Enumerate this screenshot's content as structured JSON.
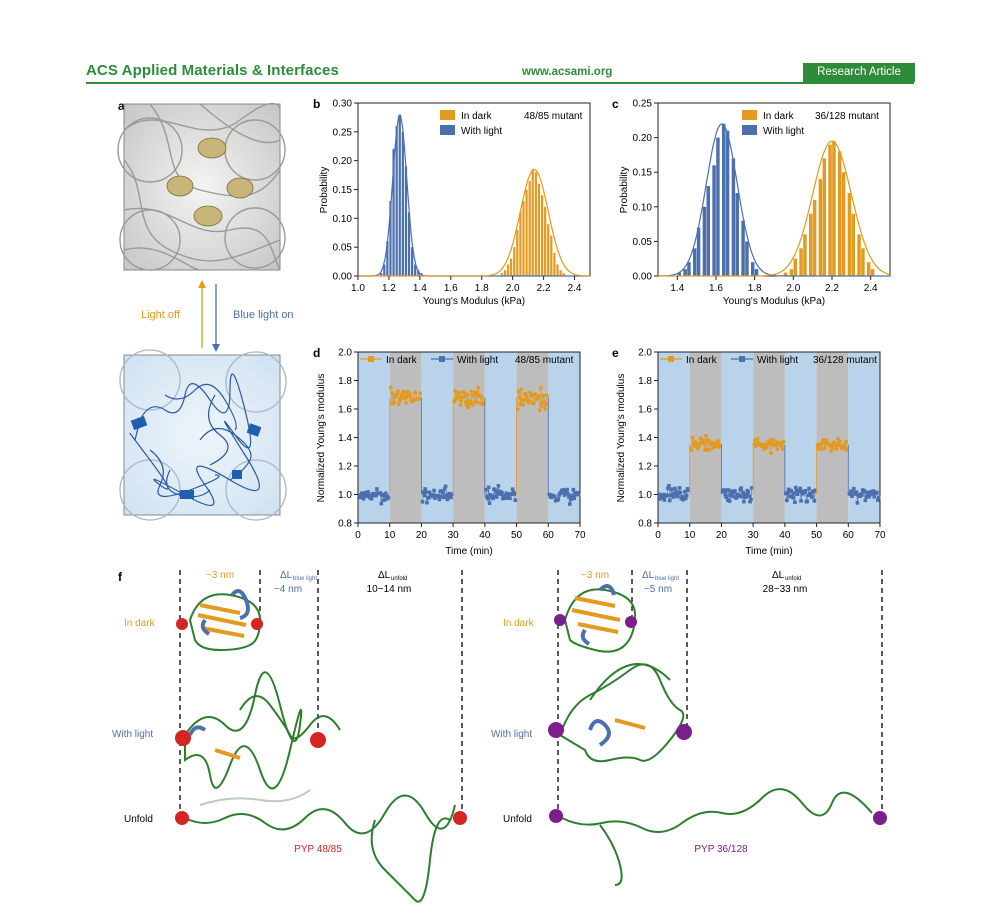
{
  "header": {
    "journal": "ACS Applied Materials & Interfaces",
    "website": "www.acsami.org",
    "badge": "Research Article"
  },
  "panel_letters": {
    "a": "a",
    "b": "b",
    "c": "c",
    "d": "d",
    "e": "e",
    "f": "f"
  },
  "panel_a": {
    "light_off": "Light off",
    "blue_light_on": "Blue light on"
  },
  "colors": {
    "dark": "#e39a1e",
    "light": "#4c6fae",
    "shade_blue": "#b9d4ea",
    "shade_grey": "#bdbdbd",
    "header_green": "#2e8b3a",
    "red_bead": "#d42424",
    "purple_bead": "#7a1f8c",
    "protein_green": "#2f7d2f"
  },
  "chart_data": [
    {
      "id": "b",
      "type": "bar",
      "ylabel": "Probability",
      "xlabel": "Young's Modulus (kPa)",
      "xlim": [
        1.0,
        2.5
      ],
      "ylim": [
        0,
        0.3
      ],
      "xticks": [
        "1.0",
        "1.2",
        "1.4",
        "1.6",
        "1.8",
        "2.0",
        "2.2",
        "2.4"
      ],
      "yticks": [
        "0.00",
        "0.05",
        "0.10",
        "0.15",
        "0.20",
        "0.25",
        "0.30"
      ],
      "legend": {
        "dark": "In dark",
        "light": "With light",
        "note": "48/85 mutant"
      },
      "bin_width": 0.02,
      "series": [
        {
          "name": "With light",
          "color": "#4c6fae",
          "mean": 1.27,
          "sd": 0.045,
          "peak": 0.28,
          "x": [
            1.15,
            1.17,
            1.19,
            1.21,
            1.23,
            1.25,
            1.27,
            1.29,
            1.31,
            1.33,
            1.35,
            1.37,
            1.39,
            1.41
          ],
          "values": [
            0.005,
            0.02,
            0.06,
            0.13,
            0.22,
            0.26,
            0.28,
            0.25,
            0.19,
            0.11,
            0.05,
            0.02,
            0.01,
            0.005
          ]
        },
        {
          "name": "In dark",
          "color": "#e39a1e",
          "mean": 2.14,
          "sd": 0.09,
          "peak": 0.185,
          "x": [
            1.93,
            1.95,
            1.97,
            1.99,
            2.01,
            2.03,
            2.05,
            2.07,
            2.09,
            2.11,
            2.13,
            2.15,
            2.17,
            2.19,
            2.21,
            2.23,
            2.25,
            2.27,
            2.29,
            2.31,
            2.33
          ],
          "values": [
            0.005,
            0.01,
            0.02,
            0.03,
            0.05,
            0.08,
            0.11,
            0.13,
            0.15,
            0.165,
            0.185,
            0.18,
            0.16,
            0.14,
            0.12,
            0.09,
            0.07,
            0.04,
            0.02,
            0.01,
            0.005
          ]
        }
      ]
    },
    {
      "id": "c",
      "type": "bar",
      "ylabel": "Probability",
      "xlabel": "Young's Modulus (kPa)",
      "xlim": [
        1.3,
        2.5
      ],
      "ylim": [
        0,
        0.25
      ],
      "xticks": [
        "1.4",
        "1.6",
        "1.8",
        "2.0",
        "2.2",
        "2.4"
      ],
      "yticks": [
        "0.00",
        "0.05",
        "0.10",
        "0.15",
        "0.20",
        "0.25"
      ],
      "legend": {
        "dark": "In dark",
        "light": "With light",
        "note": "36/128 mutant"
      },
      "bin_width": 0.025,
      "series": [
        {
          "name": "With light",
          "color": "#4c6fae",
          "mean": 1.63,
          "sd": 0.08,
          "peak": 0.22,
          "x": [
            1.41,
            1.44,
            1.46,
            1.49,
            1.51,
            1.54,
            1.56,
            1.59,
            1.61,
            1.64,
            1.66,
            1.69,
            1.71,
            1.74,
            1.76,
            1.79,
            1.81
          ],
          "values": [
            0.005,
            0.01,
            0.02,
            0.04,
            0.07,
            0.1,
            0.13,
            0.16,
            0.2,
            0.22,
            0.21,
            0.17,
            0.12,
            0.08,
            0.05,
            0.02,
            0.01
          ]
        },
        {
          "name": "In dark",
          "color": "#e39a1e",
          "mean": 2.2,
          "sd": 0.1,
          "peak": 0.195,
          "x": [
            1.96,
            1.99,
            2.01,
            2.04,
            2.06,
            2.09,
            2.11,
            2.14,
            2.16,
            2.19,
            2.21,
            2.24,
            2.26,
            2.29,
            2.31,
            2.34,
            2.36,
            2.39,
            2.41
          ],
          "values": [
            0.005,
            0.01,
            0.025,
            0.04,
            0.06,
            0.09,
            0.11,
            0.14,
            0.17,
            0.19,
            0.195,
            0.18,
            0.15,
            0.12,
            0.09,
            0.06,
            0.04,
            0.02,
            0.01
          ]
        }
      ]
    },
    {
      "id": "d",
      "type": "scatter",
      "ylabel": "Normalized Young's modulus",
      "xlabel": "Time (min)",
      "xlim": [
        0,
        70
      ],
      "ylim": [
        0.8,
        2.0
      ],
      "xticks": [
        "0",
        "10",
        "20",
        "30",
        "40",
        "50",
        "60",
        "70"
      ],
      "yticks": [
        "0.8",
        "1.0",
        "1.2",
        "1.4",
        "1.6",
        "1.8",
        "2.0"
      ],
      "legend": {
        "dark": "In dark",
        "light": "With light",
        "note": "48/85 mutant"
      },
      "light_segments": [
        [
          0,
          10
        ],
        [
          20,
          30
        ],
        [
          40,
          50
        ],
        [
          60,
          70
        ]
      ],
      "dark_segments": [
        [
          10,
          20
        ],
        [
          30,
          40
        ],
        [
          50,
          60
        ]
      ],
      "series": [
        {
          "name": "In dark",
          "color": "#e39a1e",
          "level": 1.68,
          "spread": 0.07
        },
        {
          "name": "With light",
          "color": "#4c6fae",
          "level": 1.0,
          "spread": 0.05
        }
      ]
    },
    {
      "id": "e",
      "type": "scatter",
      "ylabel": "Normalized Young's modulus",
      "xlabel": "Time (min)",
      "xlim": [
        0,
        70
      ],
      "ylim": [
        0.8,
        2.0
      ],
      "xticks": [
        "0",
        "10",
        "20",
        "30",
        "40",
        "50",
        "60",
        "70"
      ],
      "yticks": [
        "0.8",
        "1.0",
        "1.2",
        "1.4",
        "1.6",
        "1.8",
        "2.0"
      ],
      "legend": {
        "dark": "In dark",
        "light": "With light",
        "note": "36/128 mutant"
      },
      "light_segments": [
        [
          0,
          10
        ],
        [
          20,
          30
        ],
        [
          40,
          50
        ],
        [
          60,
          70
        ]
      ],
      "dark_segments": [
        [
          10,
          20
        ],
        [
          30,
          40
        ],
        [
          50,
          60
        ]
      ],
      "series": [
        {
          "name": "In dark",
          "color": "#e39a1e",
          "level": 1.35,
          "spread": 0.05
        },
        {
          "name": "With light",
          "color": "#4c6fae",
          "level": 1.0,
          "spread": 0.05
        }
      ]
    }
  ],
  "panel_f": {
    "left": {
      "dim1": "~3 nm",
      "dim2_main": "ΔL",
      "dim2_sub": "blue light",
      "dim2_val": "~4 nm",
      "dim3_main": "ΔL",
      "dim3_sub": "unfold",
      "dim3_val": "10~14 nm",
      "row_dark": "In dark",
      "row_light": "With light",
      "row_unfold": "Unfold",
      "name": "PYP 48/85"
    },
    "right": {
      "dim1": "~3 nm",
      "dim2_main": "ΔL",
      "dim2_sub": "blue light",
      "dim2_val": "~5 nm",
      "dim3_main": "ΔL",
      "dim3_sub": "unfold",
      "dim3_val": "28~33 nm",
      "row_dark": "In dark",
      "row_light": "With light",
      "row_unfold": "Unfold",
      "name": "PYP 36/128"
    }
  }
}
